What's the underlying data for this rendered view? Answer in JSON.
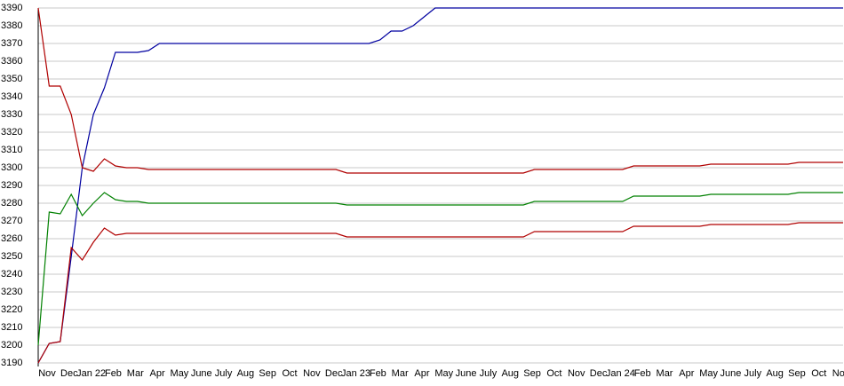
{
  "chart_data": {
    "type": "line",
    "categories": [
      "Nov",
      null,
      "Dec",
      null,
      "Jan 22",
      null,
      "Feb",
      null,
      "Mar",
      null,
      "Apr",
      null,
      "May",
      null,
      "June",
      null,
      "July",
      null,
      "Aug",
      null,
      "Sep",
      null,
      "Oct",
      null,
      "Nov",
      null,
      "Dec",
      null,
      "Jan 23",
      null,
      "Feb",
      null,
      "Mar",
      null,
      "Apr",
      null,
      "May",
      null,
      "June",
      null,
      "July",
      null,
      "Aug",
      null,
      "Sep",
      null,
      "Oct",
      null,
      "Nov",
      null,
      "Dec",
      null,
      "Jan 24",
      null,
      "Feb",
      null,
      "Mar",
      null,
      "Apr",
      null,
      "May",
      null,
      "June",
      null,
      "July",
      null,
      "Aug",
      null,
      "Sep",
      null,
      "Oct",
      null,
      "Nov",
      null
    ],
    "series": [
      {
        "color": "#0000a0",
        "values": [
          3190,
          3201,
          3202,
          3250,
          3300,
          3330,
          3345,
          3365,
          3365,
          3365,
          3366,
          3370,
          3370,
          3370,
          3370,
          3370,
          3370,
          3370,
          3370,
          3370,
          3370,
          3370,
          3370,
          3370,
          3370,
          3370,
          3370,
          3370,
          3370,
          3370,
          3370,
          3372,
          3377,
          3377,
          3380,
          3385,
          3390,
          3390,
          3390,
          3390,
          3390,
          3390,
          3390,
          3390,
          3390,
          3390,
          3390,
          3390,
          3390,
          3390,
          3390,
          3390,
          3390,
          3390,
          3390,
          3390,
          3390,
          3390,
          3390,
          3390,
          3390,
          3390,
          3390,
          3390,
          3390,
          3390,
          3390,
          3390,
          3390,
          3390,
          3390,
          3390,
          3390,
          3390
        ]
      },
      {
        "color": "#b00000",
        "values": [
          3390,
          3346,
          3346,
          3330,
          3300,
          3298,
          3305,
          3301,
          3300,
          3300,
          3299,
          3299,
          3299,
          3299,
          3299,
          3299,
          3299,
          3299,
          3299,
          3299,
          3299,
          3299,
          3299,
          3299,
          3299,
          3299,
          3299,
          3299,
          3297,
          3297,
          3297,
          3297,
          3297,
          3297,
          3297,
          3297,
          3297,
          3297,
          3297,
          3297,
          3297,
          3297,
          3297,
          3297,
          3297,
          3299,
          3299,
          3299,
          3299,
          3299,
          3299,
          3299,
          3299,
          3299,
          3301,
          3301,
          3301,
          3301,
          3301,
          3301,
          3301,
          3302,
          3302,
          3302,
          3302,
          3302,
          3302,
          3302,
          3302,
          3303,
          3303,
          3303,
          3303,
          3303
        ]
      },
      {
        "color": "#008000",
        "values": [
          3200,
          3275,
          3274,
          3285,
          3273,
          3280,
          3286,
          3282,
          3281,
          3281,
          3280,
          3280,
          3280,
          3280,
          3280,
          3280,
          3280,
          3280,
          3280,
          3280,
          3280,
          3280,
          3280,
          3280,
          3280,
          3280,
          3280,
          3280,
          3279,
          3279,
          3279,
          3279,
          3279,
          3279,
          3279,
          3279,
          3279,
          3279,
          3279,
          3279,
          3279,
          3279,
          3279,
          3279,
          3279,
          3281,
          3281,
          3281,
          3281,
          3281,
          3281,
          3281,
          3281,
          3281,
          3284,
          3284,
          3284,
          3284,
          3284,
          3284,
          3284,
          3285,
          3285,
          3285,
          3285,
          3285,
          3285,
          3285,
          3285,
          3286,
          3286,
          3286,
          3286,
          3286
        ]
      },
      {
        "color": "#b00000",
        "values": [
          3190,
          3201,
          3202,
          3255,
          3248,
          3258,
          3266,
          3262,
          3263,
          3263,
          3263,
          3263,
          3263,
          3263,
          3263,
          3263,
          3263,
          3263,
          3263,
          3263,
          3263,
          3263,
          3263,
          3263,
          3263,
          3263,
          3263,
          3263,
          3261,
          3261,
          3261,
          3261,
          3261,
          3261,
          3261,
          3261,
          3261,
          3261,
          3261,
          3261,
          3261,
          3261,
          3261,
          3261,
          3261,
          3264,
          3264,
          3264,
          3264,
          3264,
          3264,
          3264,
          3264,
          3264,
          3267,
          3267,
          3267,
          3267,
          3267,
          3267,
          3267,
          3268,
          3268,
          3268,
          3268,
          3268,
          3268,
          3268,
          3268,
          3269,
          3269,
          3269,
          3269,
          3269
        ]
      }
    ],
    "ylim": [
      3190,
      3390
    ],
    "yticks": [
      3190,
      3200,
      3210,
      3220,
      3230,
      3240,
      3250,
      3260,
      3270,
      3280,
      3290,
      3300,
      3310,
      3320,
      3330,
      3340,
      3350,
      3360,
      3370,
      3380,
      3390
    ],
    "grid": true
  }
}
